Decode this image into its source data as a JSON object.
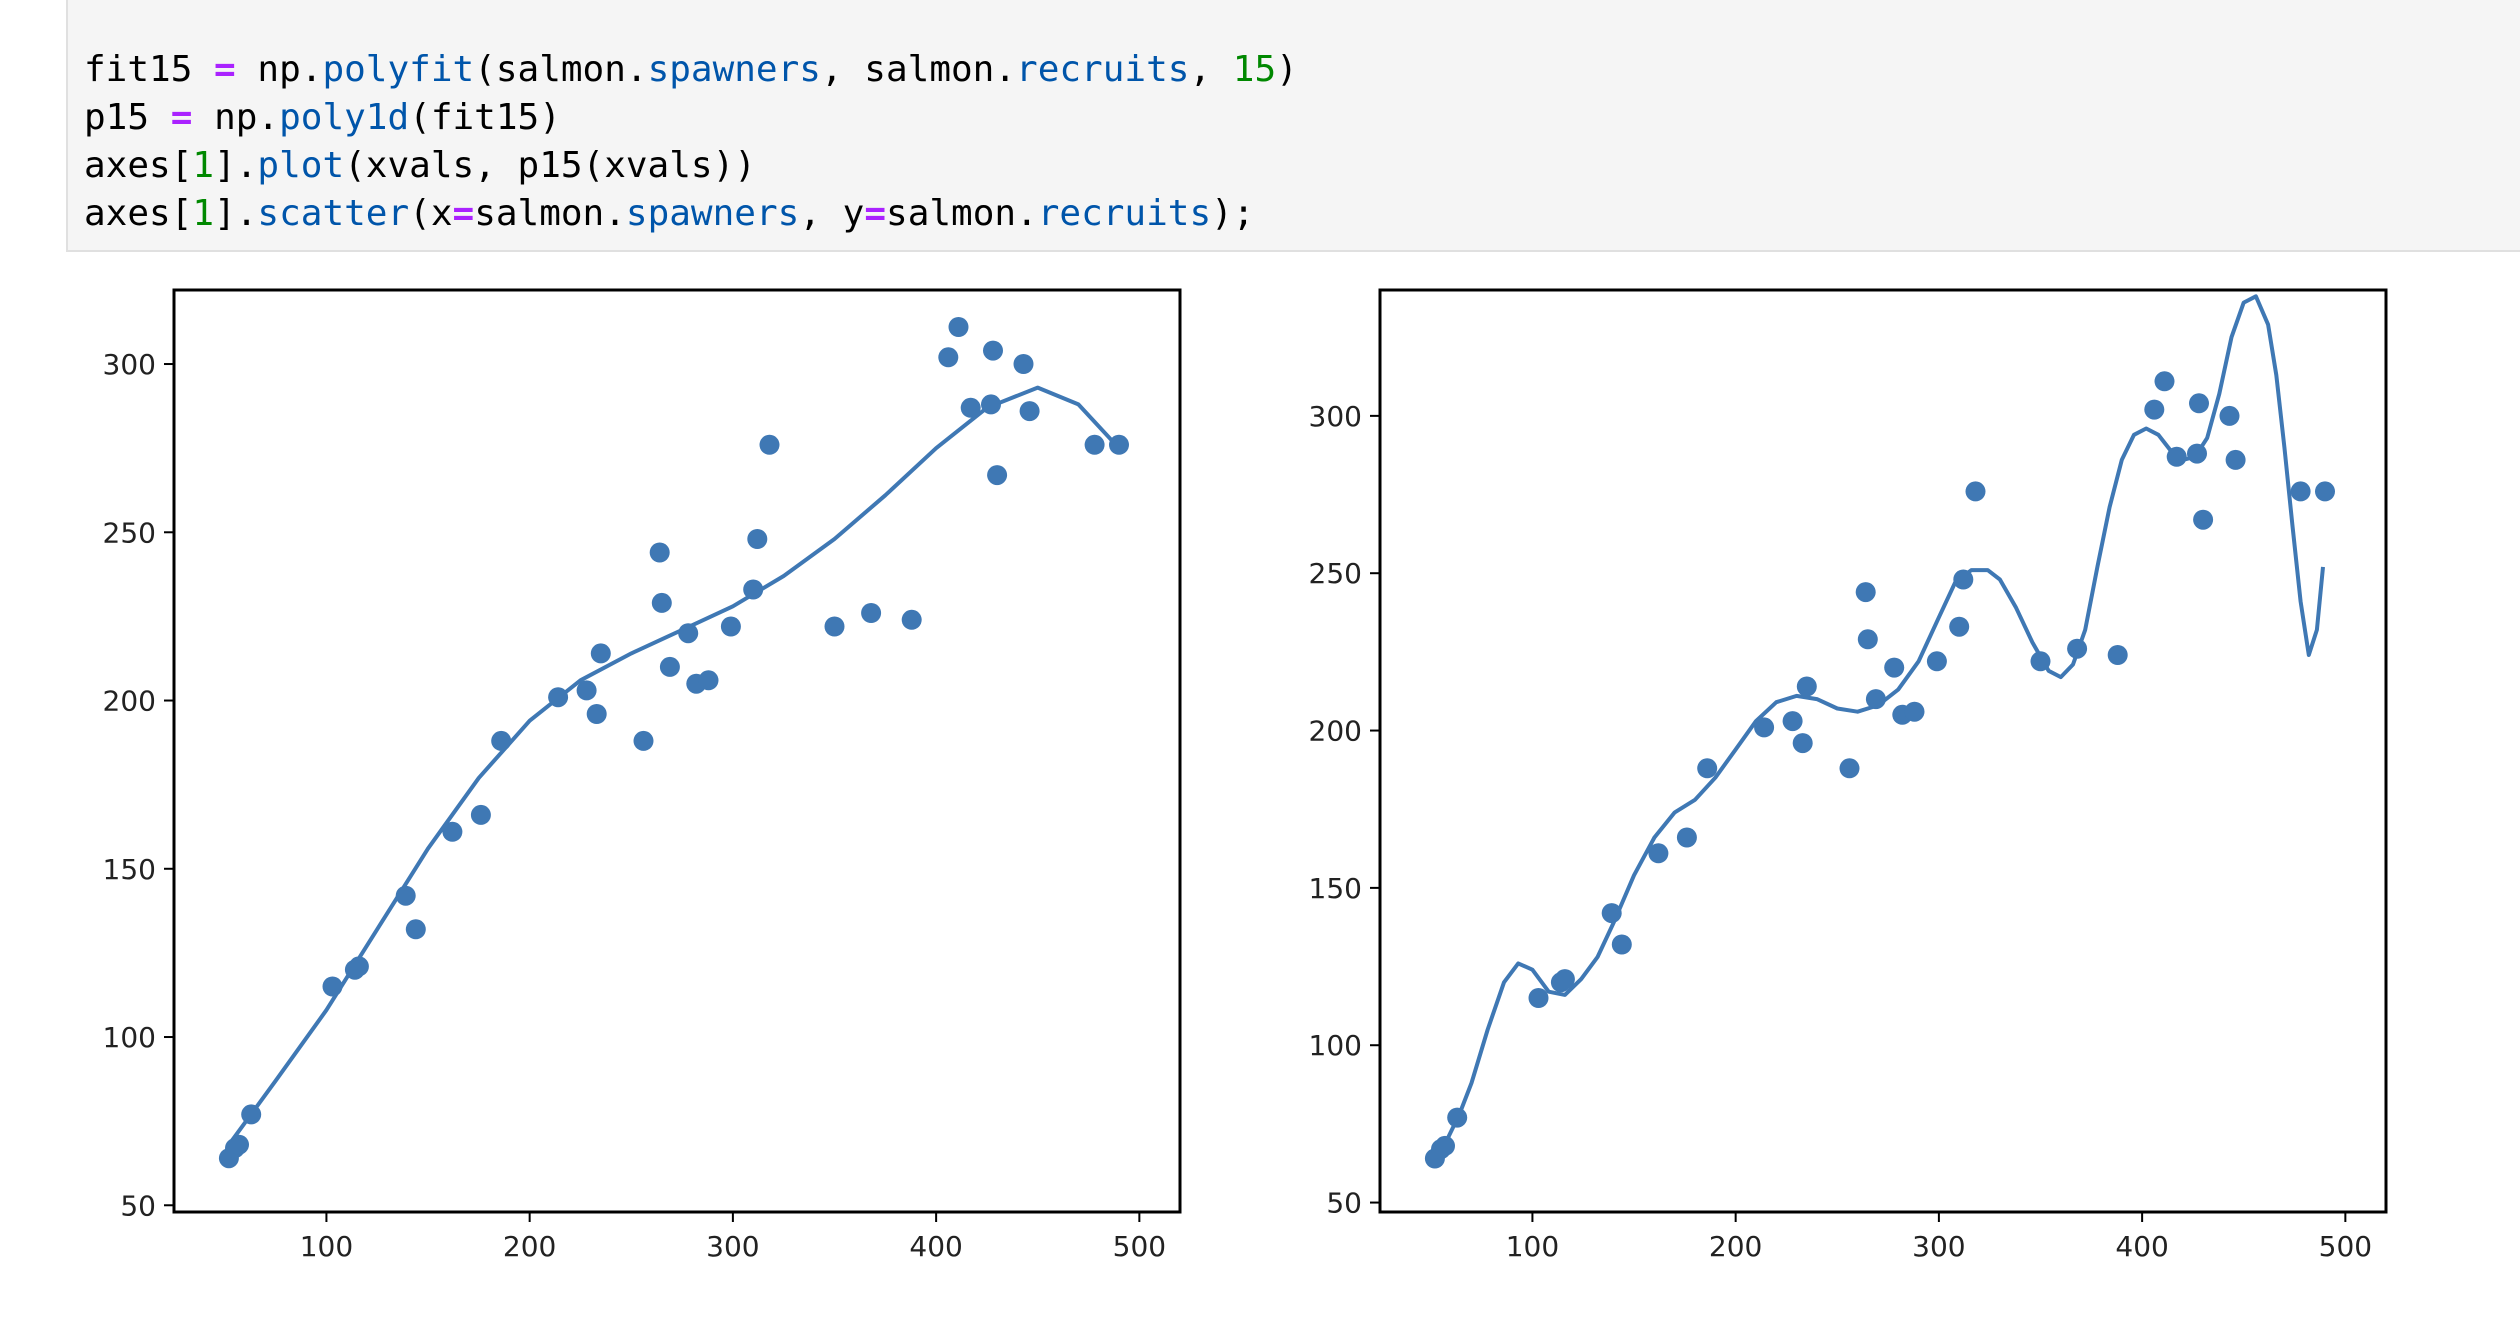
{
  "code_lines": [
    [
      "fit15",
      " = ",
      "np",
      ".",
      "polyfit",
      "(salmon.",
      "spawners",
      ", salmon.",
      "recruits",
      ", ",
      "15",
      ")"
    ],
    [
      "p15",
      " = ",
      "np",
      ".",
      "poly1d",
      "(fit15)",
      "",
      "",
      "",
      "",
      "",
      ""
    ],
    [
      "axes[",
      "1",
      "].",
      "plot",
      "(xvals, p15(xvals))",
      "",
      "",
      "",
      "",
      "",
      "",
      ""
    ],
    [
      "axes[",
      "1",
      "].",
      "scatter",
      "(x",
      "=",
      "salmon.",
      "spawners",
      ", y",
      "=",
      "salmon.",
      "recruits",
      ");"
    ]
  ],
  "colors": {
    "series": "#3f78b4",
    "cell_bg": "#f5f5f5"
  },
  "chart_data": [
    {
      "type": "scatter",
      "xlim": [
        25,
        520
      ],
      "ylim": [
        48,
        322
      ],
      "xticks": [
        100,
        200,
        300,
        400,
        500
      ],
      "yticks": [
        50,
        100,
        150,
        200,
        250,
        300
      ],
      "grid": false,
      "points": {
        "x": [
          52,
          55,
          57,
          63,
          103,
          114,
          116,
          139,
          144,
          162,
          176,
          186,
          214,
          228,
          233,
          235,
          256,
          264,
          265,
          269,
          278,
          282,
          288,
          299,
          310,
          312,
          318,
          350,
          368,
          388,
          406,
          411,
          417,
          427,
          428,
          430,
          443,
          446,
          478,
          490
        ],
        "y": [
          64,
          67,
          68,
          77,
          115,
          120,
          121,
          142,
          132,
          161,
          166,
          188,
          201,
          203,
          196,
          214,
          188,
          244,
          229,
          210,
          220,
          205,
          206,
          222,
          233,
          248,
          276,
          222,
          226,
          224,
          302,
          311,
          287,
          288,
          304,
          267,
          300,
          286,
          276,
          276
        ]
      },
      "line": {
        "x": [
          52,
          75,
          100,
          125,
          150,
          175,
          200,
          225,
          250,
          275,
          300,
          325,
          350,
          375,
          400,
          425,
          450,
          470,
          490
        ],
        "y": [
          68,
          87,
          108,
          132,
          156,
          177,
          194,
          206,
          214,
          221,
          228,
          237,
          248,
          261,
          275,
          287,
          293,
          288,
          275
        ]
      }
    },
    {
      "type": "scatter",
      "xlim": [
        25,
        520
      ],
      "ylim": [
        47,
        340
      ],
      "xticks": [
        100,
        200,
        300,
        400,
        500
      ],
      "yticks": [
        50,
        100,
        150,
        200,
        250,
        300
      ],
      "grid": false,
      "points": {
        "x": [
          52,
          55,
          57,
          63,
          103,
          114,
          116,
          139,
          144,
          162,
          176,
          186,
          214,
          228,
          233,
          235,
          256,
          264,
          265,
          269,
          278,
          282,
          288,
          299,
          310,
          312,
          318,
          350,
          368,
          388,
          406,
          411,
          417,
          427,
          428,
          430,
          443,
          446,
          478,
          490
        ],
        "y": [
          64,
          67,
          68,
          77,
          115,
          120,
          121,
          142,
          132,
          161,
          166,
          188,
          201,
          203,
          196,
          214,
          188,
          244,
          229,
          210,
          220,
          205,
          206,
          222,
          233,
          248,
          276,
          222,
          226,
          224,
          302,
          311,
          287,
          288,
          304,
          267,
          300,
          286,
          276,
          276
        ]
      },
      "line": {
        "x": [
          52,
          58,
          64,
          70,
          78,
          86,
          93,
          100,
          108,
          116,
          124,
          132,
          140,
          150,
          160,
          170,
          180,
          190,
          200,
          210,
          220,
          230,
          240,
          250,
          260,
          270,
          280,
          290,
          300,
          308,
          316,
          324,
          330,
          338,
          346,
          354,
          360,
          366,
          372,
          378,
          384,
          390,
          396,
          402,
          408,
          414,
          420,
          426,
          432,
          438,
          444,
          450,
          456,
          462,
          466,
          470,
          474,
          478,
          482,
          486,
          489
        ],
        "y": [
          66,
          70,
          78,
          88,
          105,
          120,
          126,
          124,
          117,
          116,
          121,
          128,
          139,
          154,
          166,
          174,
          178,
          185,
          194,
          203,
          209,
          211,
          210,
          207,
          206,
          208,
          213,
          222,
          236,
          247,
          251,
          251,
          248,
          239,
          228,
          219,
          217,
          221,
          232,
          252,
          271,
          286,
          294,
          296,
          294,
          289,
          286,
          287,
          293,
          307,
          325,
          336,
          338,
          329,
          313,
          290,
          265,
          241,
          224,
          232,
          252
        ]
      }
    }
  ]
}
